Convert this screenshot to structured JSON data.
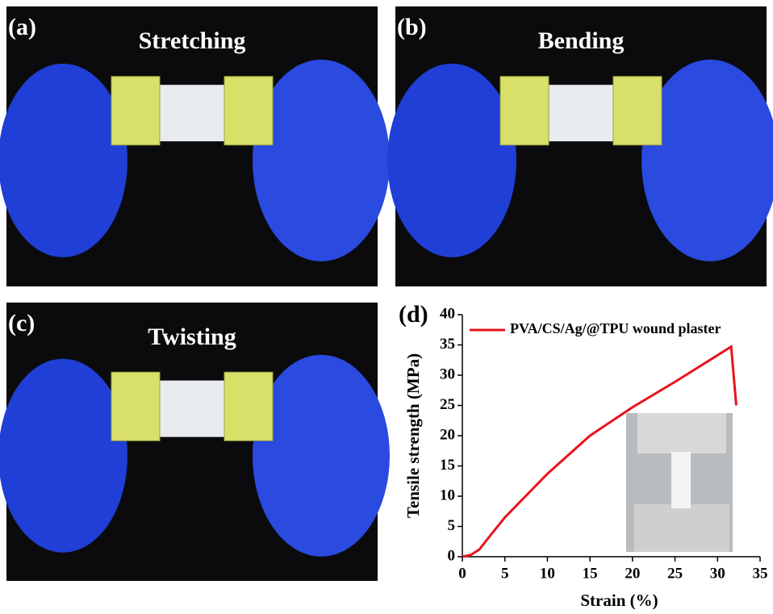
{
  "panels": [
    {
      "label": "(a)",
      "title": "Stretching"
    },
    {
      "label": "(b)",
      "title": "Bending"
    },
    {
      "label": "(c)",
      "title": "Twisting"
    }
  ],
  "chart_data": {
    "type": "line",
    "panel_label": "(d)",
    "x_label": "Strain (%)",
    "y_label": "Tensile strength (MPa)",
    "xlim": [
      0,
      35
    ],
    "xticks": [
      0,
      5,
      10,
      15,
      20,
      25,
      30,
      35
    ],
    "ylim": [
      0,
      40
    ],
    "yticks": [
      0,
      5,
      10,
      15,
      20,
      25,
      30,
      35,
      40
    ],
    "legend": "upper left",
    "series": [
      {
        "name": "PVA/CS/Ag/@TPU wound plaster",
        "color": "#e8141c",
        "x": [
          0,
          1,
          2,
          3,
          5,
          10,
          15,
          20,
          25,
          30,
          31.6,
          32.2
        ],
        "values": [
          0,
          0.3,
          1.2,
          3,
          6.5,
          13.7,
          20,
          24.7,
          28.9,
          33.3,
          34.7,
          25
        ]
      }
    ]
  }
}
